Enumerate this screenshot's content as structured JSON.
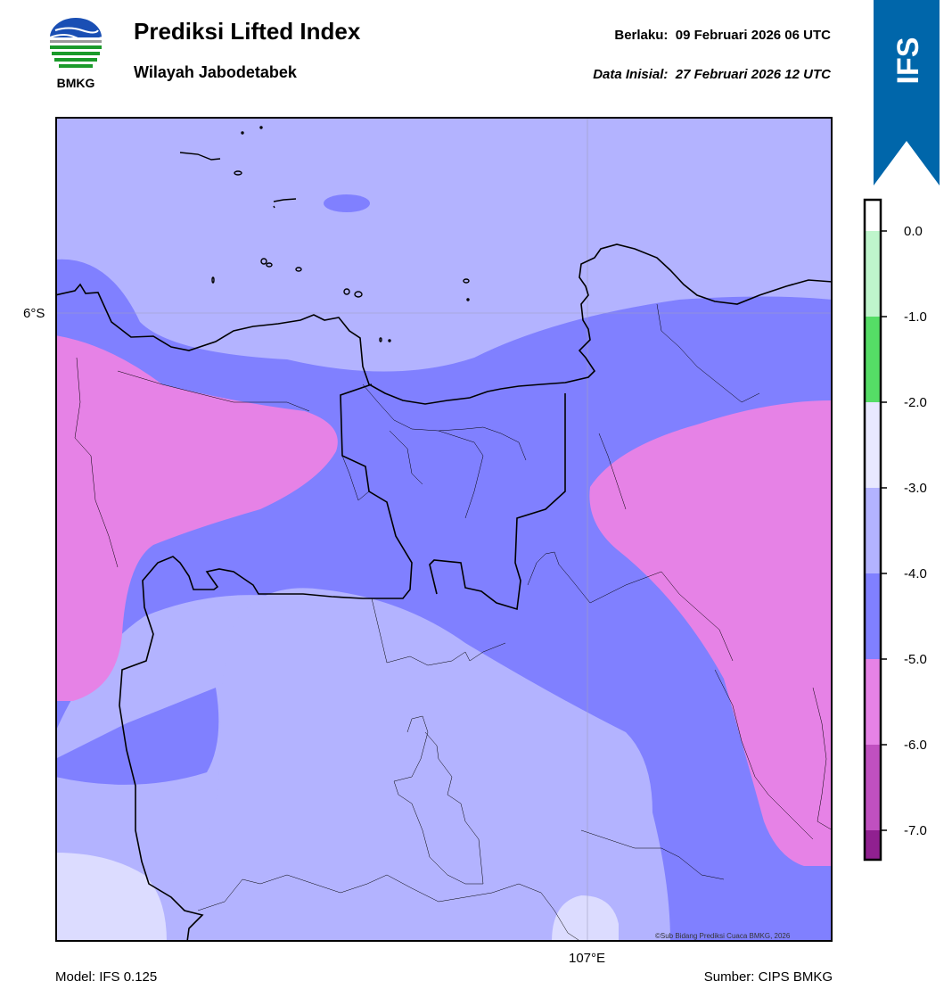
{
  "header": {
    "logo_text": "BMKG",
    "title": "Prediksi Lifted Index",
    "subtitle": "Wilayah Jabodetabek",
    "valid_label": "Berlaku:",
    "valid_value": "09 Februari 2026 06 UTC",
    "initial_label": "Data Inisial:",
    "initial_value": "27 Februari 2026 12 UTC",
    "ribbon_text": "IFS"
  },
  "map": {
    "lat_label": "6°S",
    "lon_label": "107°E",
    "copyright": "©Sub Bidang Prediksi Cuaca BMKG, 2026"
  },
  "colorbar": {
    "ticks": [
      "0.0",
      "-1.0",
      "-2.0",
      "-3.0",
      "-4.0",
      "-5.0",
      "-6.0",
      "-7.0"
    ],
    "colors": {
      "gt0": "#ffffff",
      "0_-1": "#bff5cc",
      "-1_-2": "#55dd66",
      "-2_-3": "#e8e8ff",
      "-3_-4": "#b3b3ff",
      "-4_-5": "#8080ff",
      "-5_-6": "#e682e6",
      "-6_-7": "#c050c0",
      "lt-7": "#902090"
    }
  },
  "footer": {
    "model": "Model: IFS 0.125",
    "source": "Sumber: CIPS BMKG"
  },
  "colors": {
    "ribbon": "#0066aa",
    "logo_blue": "#1a4fb4",
    "logo_green": "#1a9a2a"
  }
}
